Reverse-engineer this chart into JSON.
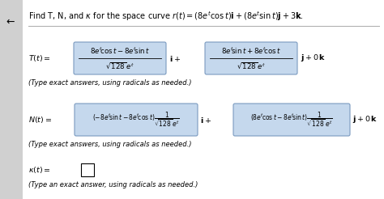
{
  "bg_color": "#e8e8e8",
  "white_bg": "#ffffff",
  "box_fill": "#c5d8ed",
  "box_edge": "#7a9abf",
  "text_color": "#111111",
  "arrow_symbol": "↤",
  "title": "Find T, N, and $\\kappa$ for the space curve $r(t) = \\left(8e^t\\cos t\\right)\\mathbf{i} + \\left(8e^t\\sin t\\right)\\mathbf{j} + 3\\mathbf{k}$.",
  "T_label": "$T(t) = $",
  "T_num1": "$8e^t\\!\\cos t - 8e^t\\!\\sin t$",
  "T_den1": "$\\sqrt{128}\\,e^t$",
  "T_num2": "$8e^t\\!\\sin t + 8e^t\\!\\cos t$",
  "T_den2": "$\\sqrt{128}\\,e^t$",
  "T_end": "$\\mathbf{j} + 0\\,\\mathbf{k}$",
  "T_mid": "$\\mathbf{i} +$",
  "T_note": "(Type exact answers, using radicals as needed.)",
  "N_label": "$N(t) = $",
  "N_inner1a": "$(-8e^t\\!\\sin t - 8e^t\\!\\cos t)$",
  "N_inner1b": "$\\dfrac{1}{\\sqrt{128}\\,e^t}$",
  "N_inner2a": "$(8e^t\\!\\cos t - 8e^t\\!\\sin t)$",
  "N_inner2b": "$\\dfrac{1}{\\sqrt{128}\\,e^t}$",
  "N_mid": "$\\mathbf{i} +$",
  "N_end": "$\\mathbf{j} + 0\\,\\mathbf{k}$",
  "N_note": "(Type exact answers, using radicals as needed.)",
  "k_label": "$\\kappa(t) = $",
  "k_note": "(Type an exact answer, using radicals as needed.)"
}
